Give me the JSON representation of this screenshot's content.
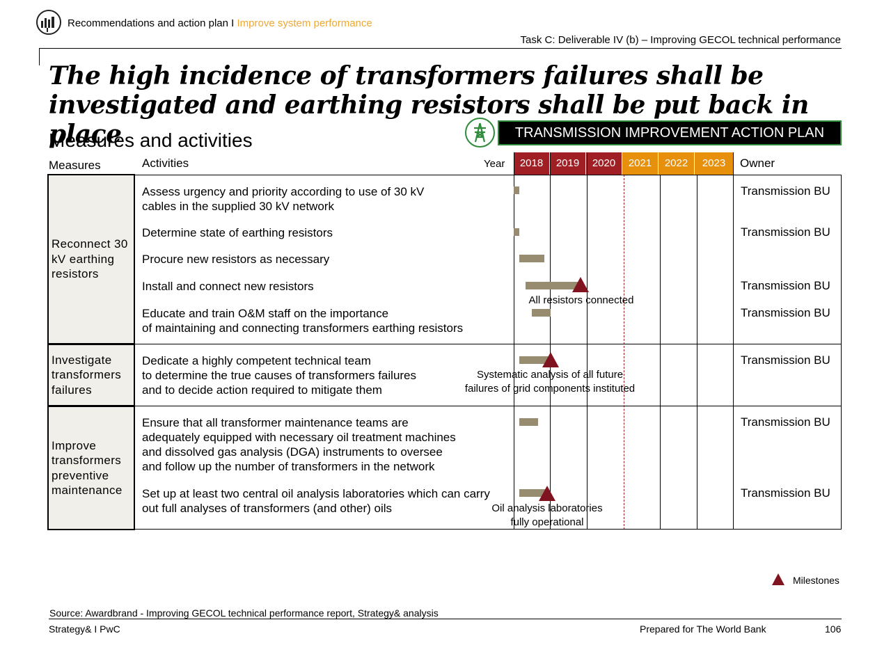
{
  "header": {
    "section": "Recommendations and action plan I",
    "subsection": "Improve system performance",
    "task": "Task C: Deliverable IV (b) – Improving GECOL technical performance"
  },
  "title_line1": "The high incidence of transformers failures shall be",
  "title_line2": "investigated and earthing resistors shall be put back in place",
  "subtitle": "Measures and activities",
  "banner": "TRANSMISSION IMPROVEMENT ACTION PLAN",
  "columns": {
    "measures": "Measures",
    "activities": "Activities",
    "year": "Year",
    "owner": "Owner"
  },
  "years": [
    "2018",
    "2019",
    "2020",
    "2021",
    "2022",
    "2023"
  ],
  "colors": {
    "past_year": "#a01f25",
    "future_year": "#e7900c",
    "accent": "#f0a830",
    "bar": "#978c70",
    "milestone": "#7f1420",
    "banner_border": "#2f8a3a"
  },
  "measures": [
    {
      "label": "Reconnect 30 kV earthing resistors"
    },
    {
      "label": "Investigate transformers failures"
    },
    {
      "label": "Improve transformers preventive maintenance"
    }
  ],
  "activities": [
    {
      "text": "Assess urgency and priority according to use of 30 kV\ncables in the supplied 30 kV network",
      "owner": "Transmission BU",
      "start": 2018.0,
      "end": 2018.15
    },
    {
      "text": "Determine state of earthing resistors",
      "owner": "Transmission BU",
      "start": 2018.0,
      "end": 2018.15
    },
    {
      "text": "Procure new resistors as necessary",
      "owner": "",
      "start": 2018.15,
      "end": 2018.83
    },
    {
      "text": "Install and connect new resistors",
      "owner": "Transmission BU",
      "start": 2018.33,
      "end": 2019.75
    },
    {
      "text": "Educate and train O&M staff  on the importance\nof maintaining and connecting transformers earthing resistors",
      "owner": "Transmission BU",
      "start": 2018.5,
      "end": 2019.0
    },
    {
      "text": "Dedicate a highly competent technical team\nto determine the true causes of transformers failures\nand to decide action required to mitigate them",
      "owner": "Transmission BU",
      "start": 2018.15,
      "end": 2019.0
    },
    {
      "text": "Ensure that all transformer maintenance teams are\nadequately equipped with necessary oil treatment machines\nand dissolved gas analysis  (DGA) instruments to oversee\nand follow up the number of transformers in the network",
      "owner": "Transmission BU",
      "start": 2018.15,
      "end": 2018.67
    },
    {
      "text": "Set up at least two central oil analysis laboratories which can carry\nout full analyses of transformers (and other) oils",
      "owner": "Transmission BU",
      "start": 2018.15,
      "end": 2018.9
    }
  ],
  "milestones": [
    {
      "label": "All resistors connected",
      "year": 2019.83
    },
    {
      "label": "Systematic analysis of all future\n failures of grid components instituted",
      "year": 2019.0
    },
    {
      "label": "Oil analysis laboratories\nfully operational",
      "year": 2018.92
    }
  ],
  "legend": "Milestones",
  "source": "Source: Awardbrand - Improving GECOL technical performance report, Strategy& analysis",
  "footer": {
    "left": "Strategy& I PwC",
    "center": "Prepared for The World Bank",
    "page": "106"
  }
}
